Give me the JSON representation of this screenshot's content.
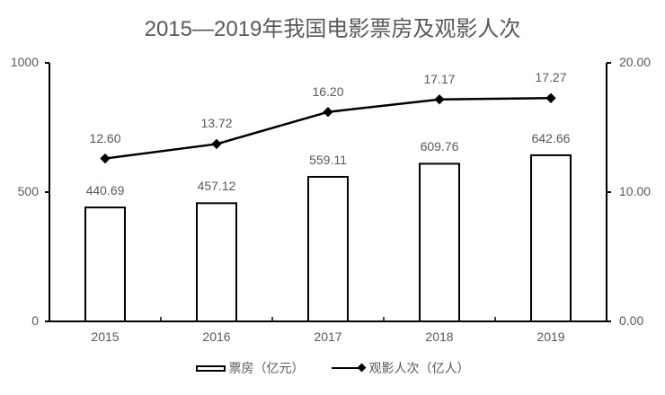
{
  "chart_data": {
    "type": "bar",
    "title": "2015—2019年我国电影票房及观影人次",
    "categories": [
      "2015",
      "2016",
      "2017",
      "2018",
      "2019"
    ],
    "series": [
      {
        "name": "票房（亿元）",
        "type": "bar",
        "axis": "left",
        "values": [
          440.69,
          457.12,
          559.11,
          609.76,
          642.66
        ],
        "labels": [
          "440.69",
          "457.12",
          "559.11",
          "609.76",
          "642.66"
        ]
      },
      {
        "name": "观影人次（亿人）",
        "type": "line",
        "axis": "right",
        "marker": "diamond",
        "values": [
          12.6,
          13.72,
          16.2,
          17.17,
          17.27
        ],
        "labels": [
          "12.60",
          "13.72",
          "16.20",
          "17.17",
          "17.27"
        ]
      }
    ],
    "left_axis": {
      "ylim": [
        0,
        1000
      ],
      "ticks": [
        "0",
        "500",
        "1000"
      ]
    },
    "right_axis": {
      "ylim": [
        0,
        20
      ],
      "ticks": [
        "0.00",
        "10.00",
        "20.00"
      ]
    },
    "xlabel": "",
    "ylabel": "",
    "grid": false,
    "legend_position": "bottom"
  },
  "title": "2015—2019年我国电影票房及观影人次",
  "legend": {
    "bar_label": "票房（亿元）",
    "line_label": "观影人次（亿人）"
  }
}
